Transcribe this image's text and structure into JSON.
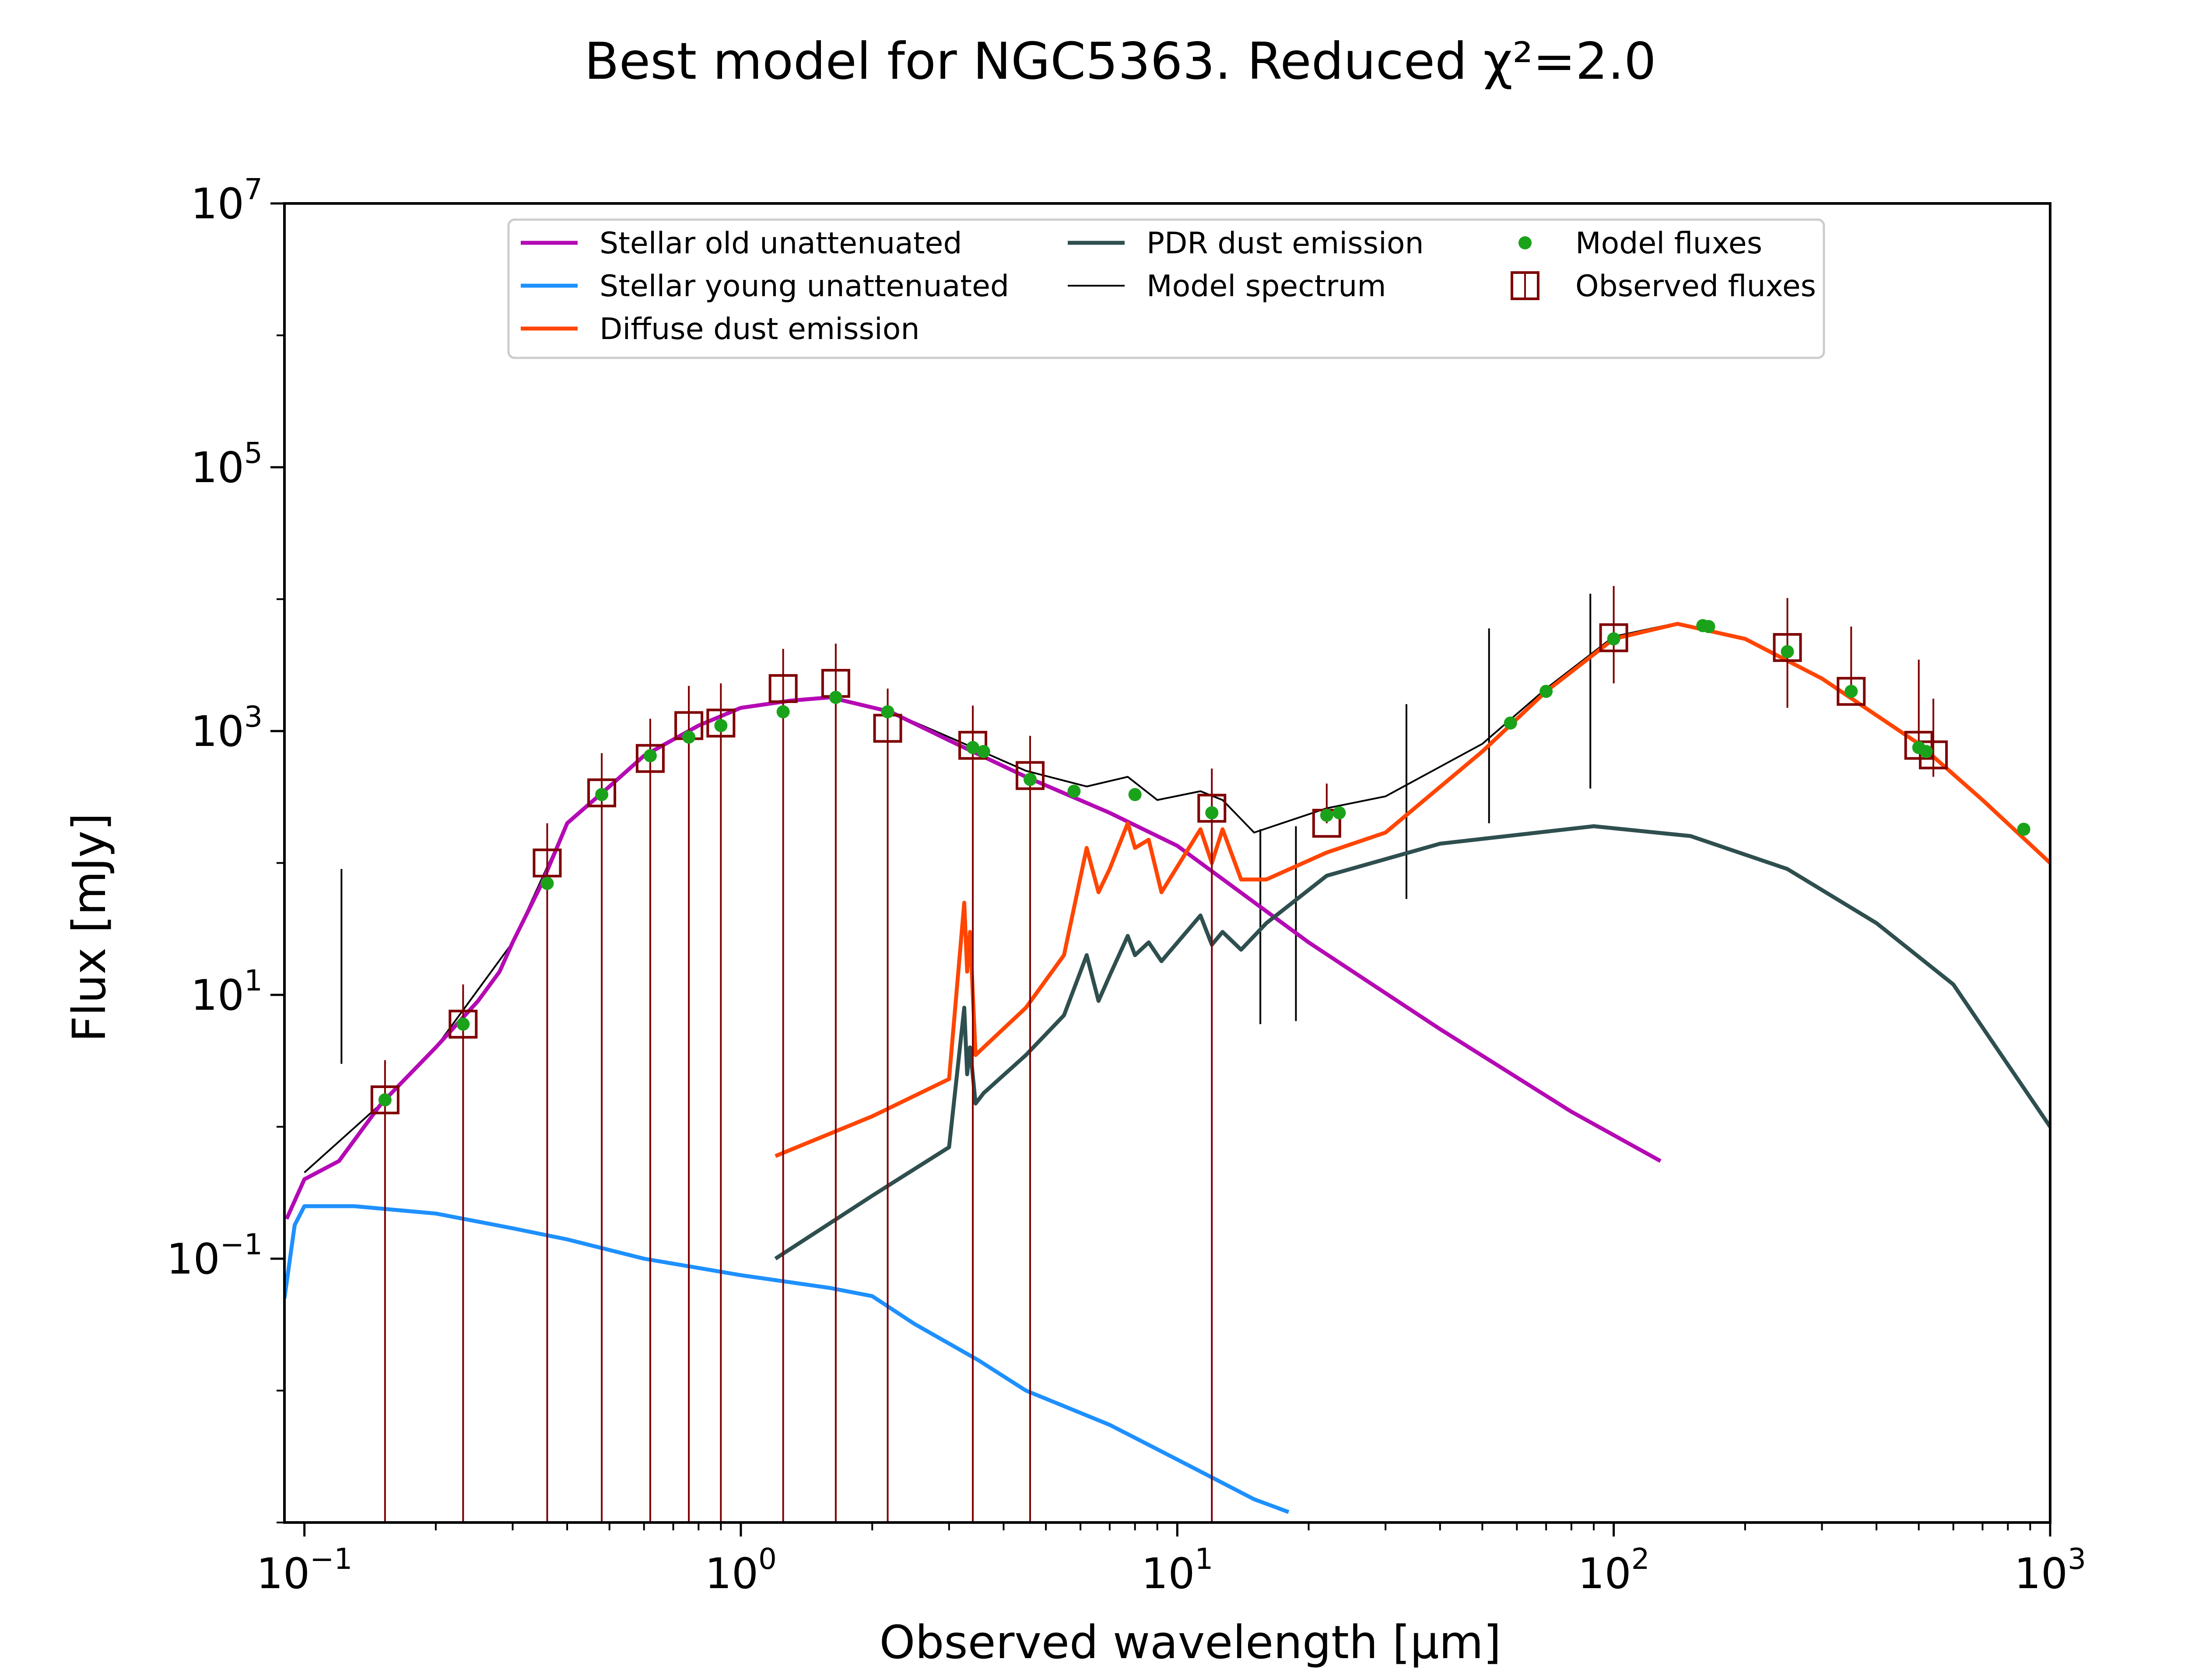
{
  "chart_data": {
    "type": "line",
    "title": "Best model for NGC5363. Reduced χ²=2.0",
    "xlabel": "Observed wavelength [μm]",
    "ylabel": "Flux [mJy]",
    "xscale": "log",
    "yscale": "log",
    "xlim": [
      0.09,
      1000
    ],
    "ylim": [
      0.001,
      10000000
    ],
    "xticks": [
      {
        "value": 0.1,
        "base": "10",
        "exp": "−1"
      },
      {
        "value": 1,
        "base": "10",
        "exp": "0"
      },
      {
        "value": 10,
        "base": "10",
        "exp": "1"
      },
      {
        "value": 100,
        "base": "10",
        "exp": "2"
      },
      {
        "value": 1000,
        "base": "10",
        "exp": "3"
      }
    ],
    "yticks": [
      {
        "value": 0.1,
        "base": "10",
        "exp": "−1"
      },
      {
        "value": 10,
        "base": "10",
        "exp": "1"
      },
      {
        "value": 1000,
        "base": "10",
        "exp": "3"
      },
      {
        "value": 100000,
        "base": "10",
        "exp": "5"
      },
      {
        "value": 10000000,
        "base": "10",
        "exp": "7"
      }
    ],
    "grid": false,
    "legend_position": "top-center",
    "legend": [
      {
        "label": "Stellar old unattenuated",
        "kind": "line",
        "color": "#b40ab4"
      },
      {
        "label": "Stellar young unattenuated",
        "kind": "line",
        "color": "#1e90ff"
      },
      {
        "label": "Diffuse dust emission",
        "kind": "line",
        "color": "#ff4500"
      },
      {
        "label": "PDR dust emission",
        "kind": "line",
        "color": "#2f4f4f"
      },
      {
        "label": "Model spectrum",
        "kind": "thinline",
        "color": "#000000"
      },
      {
        "label": "Model fluxes",
        "kind": "dot",
        "color": "#1aa31a"
      },
      {
        "label": "Observed fluxes",
        "kind": "square",
        "color": "#7f0000"
      }
    ],
    "series": [
      {
        "name": "Stellar old unattenuated",
        "color": "#b40ab4",
        "x": [
          0.091,
          0.1,
          0.12,
          0.15,
          0.2,
          0.25,
          0.28,
          0.3,
          0.35,
          0.4,
          0.5,
          0.6,
          0.8,
          1.0,
          1.3,
          1.6,
          2.2,
          3.0,
          4.5,
          7,
          10,
          20,
          40,
          80,
          128
        ],
        "y": [
          0.2,
          0.4,
          0.55,
          1.5,
          4,
          9,
          15,
          25,
          70,
          200,
          380,
          650,
          1100,
          1500,
          1700,
          1800,
          1400,
          850,
          450,
          240,
          135,
          25,
          5.5,
          1.3,
          0.55
        ]
      },
      {
        "name": "Stellar young unattenuated",
        "color": "#1e90ff",
        "x": [
          0.09,
          0.095,
          0.1,
          0.13,
          0.2,
          0.3,
          0.4,
          0.6,
          1.0,
          1.6,
          2.0,
          2.5,
          3.5,
          4.5,
          7,
          10,
          15,
          18
        ],
        "y": [
          0.05,
          0.18,
          0.25,
          0.25,
          0.22,
          0.17,
          0.14,
          0.1,
          0.075,
          0.06,
          0.052,
          0.032,
          0.017,
          0.01,
          0.0055,
          0.003,
          0.0015,
          0.0012
        ]
      },
      {
        "name": "Diffuse dust emission",
        "color": "#ff4500",
        "x": [
          1.2,
          2.0,
          3.0,
          3.25,
          3.3,
          3.35,
          3.45,
          3.6,
          4.5,
          5.5,
          6.2,
          6.6,
          7.0,
          7.7,
          8.0,
          8.6,
          9.2,
          11.3,
          12.0,
          12.7,
          14.0,
          16,
          22,
          30,
          50,
          70,
          100,
          140,
          200,
          300,
          500,
          700,
          1000
        ],
        "y": [
          0.6,
          1.2,
          2.3,
          50,
          15,
          30,
          3.5,
          4,
          8,
          20,
          130,
          60,
          90,
          200,
          130,
          150,
          60,
          180,
          100,
          180,
          75,
          75,
          120,
          170,
          700,
          2000,
          5000,
          6500,
          5000,
          2500,
          800,
          300,
          100
        ]
      },
      {
        "name": "PDR dust emission",
        "color": "#2f4f4f",
        "x": [
          1.2,
          2.0,
          3.0,
          3.25,
          3.3,
          3.35,
          3.45,
          3.6,
          4.5,
          5.5,
          6.2,
          6.6,
          7.0,
          7.7,
          8.0,
          8.6,
          9.2,
          11.3,
          12.0,
          12.7,
          14.0,
          16,
          22,
          40,
          90,
          150,
          250,
          400,
          600,
          1000
        ],
        "y": [
          0.1,
          0.3,
          0.7,
          8,
          2.5,
          4,
          1.5,
          1.8,
          3.5,
          7,
          20,
          9,
          14,
          28,
          20,
          25,
          18,
          40,
          24,
          30,
          22,
          35,
          80,
          140,
          190,
          160,
          90,
          35,
          12,
          1
        ]
      }
    ],
    "model_spectrum": {
      "name": "Model spectrum",
      "color": "#000000",
      "x": [
        0.1,
        0.15,
        0.2,
        0.3,
        0.4,
        0.5,
        0.6,
        0.8,
        1.0,
        1.3,
        1.6,
        2.2,
        3.0,
        4.5,
        6.2,
        7.7,
        9,
        11.3,
        12.7,
        15,
        22,
        30,
        50,
        70,
        100,
        140,
        200,
        300,
        500,
        700,
        1000
      ],
      "y": [
        0.45,
        1.5,
        4,
        25,
        200,
        380,
        650,
        1100,
        1500,
        1700,
        1800,
        1400,
        900,
        500,
        380,
        450,
        300,
        350,
        300,
        170,
        260,
        320,
        800,
        2100,
        5200,
        6600,
        5000,
        2500,
        800,
        300,
        100
      ]
    },
    "emission_lines": [
      {
        "x": 0.1216,
        "y": 90
      },
      {
        "x": 15.5,
        "y": 180
      },
      {
        "x": 18.7,
        "y": 190
      },
      {
        "x": 33.5,
        "y": 1600
      },
      {
        "x": 51.8,
        "y": 6000
      },
      {
        "x": 88.4,
        "y": 11000
      }
    ],
    "model_fluxes": {
      "name": "Model fluxes",
      "color": "#1aa31a",
      "x": [
        0.153,
        0.231,
        0.36,
        0.48,
        0.62,
        0.76,
        0.9,
        1.25,
        1.65,
        2.17,
        3.4,
        3.6,
        4.6,
        5.8,
        8.0,
        12.0,
        22,
        23.5,
        58,
        70,
        100,
        160,
        165,
        250,
        350,
        500,
        520,
        870
      ],
      "y": [
        1.6,
        6.0,
        70,
        330,
        650,
        900,
        1100,
        1400,
        1800,
        1400,
        750,
        700,
        430,
        350,
        330,
        240,
        230,
        240,
        1150,
        2000,
        5000,
        6300,
        6200,
        4000,
        2000,
        750,
        700,
        180
      ]
    },
    "observed_fluxes": {
      "name": "Observed fluxes",
      "color": "#7f0000",
      "x": [
        0.153,
        0.231,
        0.36,
        0.48,
        0.62,
        0.76,
        0.9,
        1.25,
        1.65,
        2.17,
        3.4,
        4.6,
        12.0,
        22,
        100,
        250,
        350,
        500,
        540
      ],
      "y": [
        1.6,
        6.0,
        100,
        340,
        620,
        1100,
        1150,
        2100,
        2300,
        1050,
        780,
        460,
        260,
        200,
        5100,
        4300,
        2000,
        780,
        660
      ],
      "err_low": [
        1.6,
        6.0,
        100,
        340,
        620,
        1100,
        1150,
        2100,
        2300,
        1050,
        780,
        460,
        260,
        0.001,
        2800,
        2800,
        0.001,
        0.001,
        210
      ],
      "err_high": [
        1.6,
        6.0,
        100,
        340,
        620,
        1100,
        1150,
        2100,
        2300,
        1050,
        780,
        460,
        260,
        200,
        7500,
        5900,
        4200,
        2700,
        1100
      ]
    }
  }
}
